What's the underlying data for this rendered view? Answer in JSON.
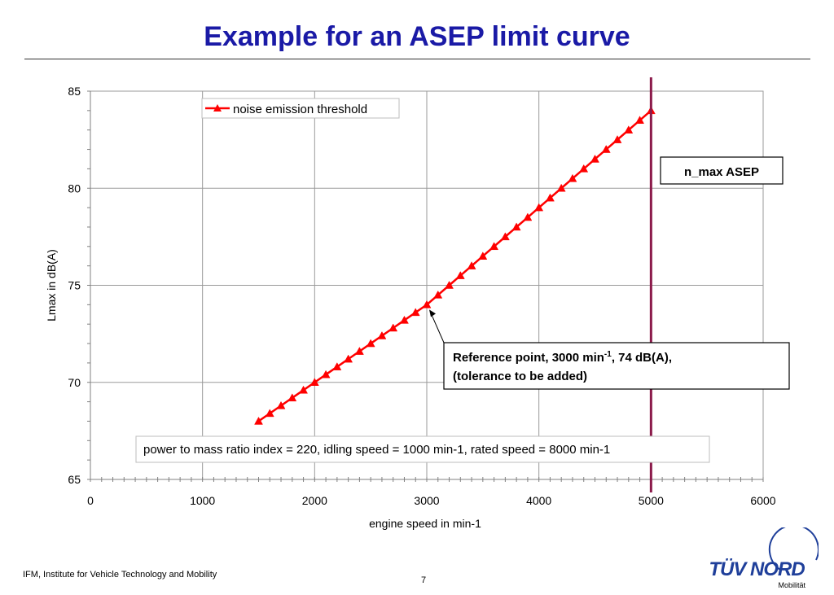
{
  "slide": {
    "title": "Example for an ASEP limit curve",
    "footer_left": "IFM, Institute for Vehicle Technology and Mobility",
    "page_number": "7",
    "logo_text": "TÜV NORD",
    "logo_sub": "Mobilität",
    "logo_icon": "tuv-nord-logo-icon"
  },
  "colors": {
    "title": "#1a1aa6",
    "series": "#ff0000",
    "nmax_line": "#8b1a4a",
    "logo": "#1f3f9a"
  },
  "chart_data": {
    "type": "line",
    "xlabel": "engine speed in min-1",
    "ylabel": "Lmax in dB(A)",
    "xlim": [
      0,
      6000
    ],
    "ylim": [
      65,
      85
    ],
    "x_ticks": [
      "0",
      "1000",
      "2000",
      "3000",
      "4000",
      "5000",
      "6000"
    ],
    "y_ticks": [
      "65",
      "70",
      "75",
      "80",
      "85"
    ],
    "grid": true,
    "legend_position": "top-left",
    "series": [
      {
        "name": "noise emission threshold",
        "marker": "triangle",
        "x": [
          1500,
          1600,
          1700,
          1800,
          1900,
          2000,
          2100,
          2200,
          2300,
          2400,
          2500,
          2600,
          2700,
          2800,
          2900,
          3000,
          3100,
          3200,
          3300,
          3400,
          3500,
          3600,
          3700,
          3800,
          3900,
          4000,
          4100,
          4200,
          4300,
          4400,
          4500,
          4600,
          4700,
          4800,
          4900,
          5000
        ],
        "y": [
          68.0,
          68.4,
          68.8,
          69.2,
          69.6,
          70.0,
          70.4,
          70.8,
          71.2,
          71.6,
          72.0,
          72.4,
          72.8,
          73.2,
          73.6,
          74.0,
          74.5,
          75.0,
          75.5,
          76.0,
          76.5,
          77.0,
          77.5,
          78.0,
          78.5,
          79.0,
          79.5,
          80.0,
          80.5,
          81.0,
          81.5,
          82.0,
          82.5,
          83.0,
          83.5,
          84.0
        ]
      }
    ],
    "vertical_line": {
      "x": 5000,
      "label": "n_max ASEP"
    },
    "reference_point": {
      "x": 3000,
      "y": 74,
      "label_main": "Reference point, 3000  min",
      "label_sup": "-1",
      "label_rest": ", 74 dB(A),",
      "label_line2": "(tolerance to be added)"
    },
    "info_note": "power to mass ratio index = 220, idling speed = 1000 min-1, rated speed = 8000 min-1"
  }
}
